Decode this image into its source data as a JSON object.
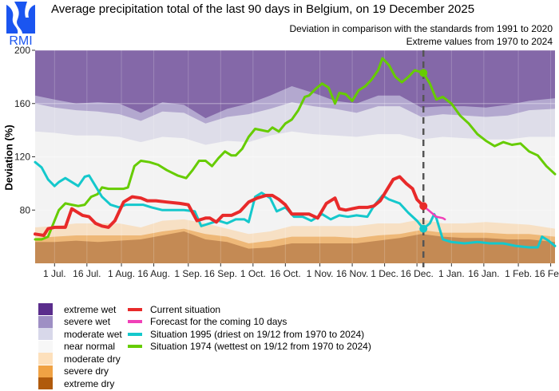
{
  "header": {
    "logo_text": "RMI",
    "title": "Average precipitation total of the last 90 days in Belgium, on 19 December 2025",
    "subtitle_1": "Deviation in comparison with the standards from 1991 to 2020",
    "subtitle_2": "Extreme values from 1970 to 2024"
  },
  "colors": {
    "extreme_wet": "#8468a8",
    "severe_wet": "#b3a8cf",
    "moderate_wet": "#dedde9",
    "near_normal": "#f3f3f3",
    "moderate_dry": "#f7e0c4",
    "severe_dry": "#eeb878",
    "extreme_dry": "#c48a54",
    "current": "#e82a2a",
    "forecast": "#f040b8",
    "y1995": "#14c8cc",
    "y1974": "#66cc00",
    "today_line": "#555555"
  },
  "legend": {
    "categories": [
      {
        "label": "extreme wet",
        "color": "#5a2d8c"
      },
      {
        "label": "severe wet",
        "color": "#9e8fc4"
      },
      {
        "label": "moderate wet",
        "color": "#d8d8ea"
      },
      {
        "label": "near normal",
        "color": "#f7f7f7"
      },
      {
        "label": "moderate dry",
        "color": "#fde0bc"
      },
      {
        "label": "severe dry",
        "color": "#f0a244"
      },
      {
        "label": "extreme dry",
        "color": "#b05a0c"
      }
    ],
    "series": [
      {
        "label": "Current situation",
        "color": "#e82a2a"
      },
      {
        "label": "Forecast for the coming 10 days",
        "color": "#f040b8"
      },
      {
        "label": "Situation 1995 (driest on 19/12 from 1970 to 2024)",
        "color": "#14c8cc"
      },
      {
        "label": "Situation 1974 (wettest on 19/12 from 1970 to 2024)",
        "color": "#66cc00"
      }
    ]
  },
  "chart_data": {
    "type": "area",
    "title": "Average precipitation total of the last 90 days in Belgium, on 19 December 2025",
    "xlabel": "",
    "ylabel": "Deviation (%)",
    "x_unit": "days since 1 Jul.",
    "xlim": [
      -9,
      232
    ],
    "ylim": [
      40,
      200
    ],
    "yticks": [
      80,
      120,
      160,
      200
    ],
    "xticks": [
      {
        "day": 0,
        "label": "1 Jul."
      },
      {
        "day": 15,
        "label": "16 Jul."
      },
      {
        "day": 31,
        "label": "1 Aug."
      },
      {
        "day": 46,
        "label": "16 Aug."
      },
      {
        "day": 62,
        "label": "1 Sep."
      },
      {
        "day": 77,
        "label": "16 Sep."
      },
      {
        "day": 92,
        "label": "1 Oct."
      },
      {
        "day": 107,
        "label": "16 Oct."
      },
      {
        "day": 123,
        "label": "1 Nov."
      },
      {
        "day": 138,
        "label": "16 Nov."
      },
      {
        "day": 153,
        "label": "1 Dec."
      },
      {
        "day": 168,
        "label": "16 Dec."
      },
      {
        "day": 184,
        "label": "1 Jan."
      },
      {
        "day": 199,
        "label": "16 Jan."
      },
      {
        "day": 215,
        "label": "1 Feb."
      },
      {
        "day": 230,
        "label": "16 Feb."
      }
    ],
    "grid": true,
    "today_day": 171,
    "bands": {
      "x": [
        -9,
        0,
        10,
        20,
        30,
        40,
        50,
        60,
        70,
        80,
        90,
        100,
        110,
        120,
        130,
        140,
        150,
        160,
        170,
        180,
        190,
        200,
        210,
        220,
        232
      ],
      "severe_wet_top": [
        166,
        163,
        160,
        161,
        160,
        153,
        161,
        159,
        149,
        156,
        160,
        166,
        173,
        168,
        162,
        160,
        166,
        166,
        157,
        158,
        158,
        157,
        159,
        162,
        164
      ],
      "moderate_wet_top": [
        160,
        157,
        155,
        154,
        152,
        147,
        154,
        153,
        145,
        150,
        152,
        156,
        161,
        158,
        156,
        153,
        158,
        158,
        150,
        152,
        151,
        150,
        151,
        155,
        156
      ],
      "near_normal_top": [
        139,
        138,
        136,
        136,
        135,
        131,
        135,
        134,
        129,
        132,
        131,
        136,
        139,
        137,
        136,
        135,
        137,
        137,
        133,
        135,
        134,
        133,
        133,
        135,
        135
      ],
      "moderate_dry_top": [
        67,
        68,
        70,
        70,
        70,
        67,
        72,
        73,
        70,
        66,
        62,
        64,
        68,
        68,
        68,
        68,
        70,
        70,
        73,
        70,
        70,
        71,
        70,
        69,
        66
      ],
      "severe_dry_top": [
        59,
        60,
        61,
        61,
        61,
        61,
        64,
        66,
        62,
        60,
        55,
        57,
        60,
        60,
        60,
        59,
        61,
        62,
        65,
        63,
        63,
        63,
        62,
        62,
        60
      ],
      "extreme_dry_top": [
        56,
        56,
        57,
        56,
        57,
        58,
        61,
        64,
        58,
        56,
        51,
        52,
        55,
        55,
        55,
        55,
        57,
        59,
        62,
        60,
        59,
        59,
        58,
        58,
        56
      ]
    },
    "series": [
      {
        "name": "Current situation",
        "x": [
          -9,
          -5,
          -3,
          0,
          3,
          5,
          8,
          10,
          13,
          16,
          19,
          22,
          25,
          28,
          32,
          36,
          40,
          43,
          47,
          52,
          58,
          62,
          66,
          70,
          72,
          75,
          78,
          82,
          86,
          90,
          94,
          98,
          101,
          104,
          107,
          110,
          114,
          118,
          122,
          126,
          130,
          132,
          135,
          138,
          141,
          145,
          148,
          151,
          154,
          157,
          160,
          163,
          166,
          168,
          171
        ],
        "values": [
          62,
          61,
          66,
          67,
          67,
          67,
          81,
          79,
          76,
          75,
          70,
          68,
          67,
          72,
          86,
          90,
          89,
          87,
          87,
          86,
          85,
          84,
          72,
          74,
          74,
          71,
          76,
          76,
          79,
          86,
          89,
          91,
          91,
          88,
          84,
          77,
          77,
          77,
          74,
          85,
          89,
          81,
          80,
          81,
          82,
          82,
          83,
          87,
          95,
          103,
          105,
          100,
          96,
          88,
          83
        ]
      },
      {
        "name": "Forecast for the coming 10 days",
        "x": [
          171,
          174,
          177,
          180,
          181
        ],
        "values": [
          83,
          79,
          75,
          74,
          73
        ]
      },
      {
        "name": "Situation 1995",
        "x": [
          -9,
          -6,
          -3,
          0,
          2,
          5,
          8,
          11,
          14,
          16,
          19,
          22,
          26,
          30,
          33,
          37,
          41,
          45,
          50,
          55,
          60,
          65,
          68,
          72,
          76,
          80,
          84,
          88,
          90,
          93,
          96,
          100,
          103,
          107,
          111,
          115,
          119,
          124,
          128,
          132,
          136,
          140,
          145,
          148,
          152,
          155,
          160,
          164,
          168,
          171,
          174,
          176,
          177,
          180,
          184,
          190,
          196,
          202,
          208,
          214,
          220,
          224,
          226,
          229,
          232
        ],
        "values": [
          116,
          112,
          103,
          98,
          101,
          104,
          101,
          98,
          105,
          106,
          98,
          90,
          84,
          82,
          84,
          84,
          84,
          82,
          80,
          80,
          80,
          79,
          68,
          70,
          72,
          70,
          73,
          73,
          71,
          90,
          93,
          89,
          79,
          82,
          75,
          75,
          72,
          77,
          73,
          76,
          75,
          76,
          75,
          83,
          91,
          88,
          85,
          78,
          72,
          66,
          70,
          77,
          74,
          58,
          56,
          55,
          56,
          55,
          55,
          53,
          52,
          52,
          60,
          57,
          53
        ]
      },
      {
        "name": "Situation 1974",
        "x": [
          -9,
          -6,
          -3,
          0,
          2,
          5,
          8,
          11,
          14,
          17,
          20,
          22,
          25,
          28,
          32,
          34,
          37,
          40,
          44,
          48,
          52,
          57,
          61,
          64,
          67,
          70,
          73,
          76,
          79,
          82,
          84,
          87,
          90,
          93,
          96,
          99,
          101,
          104,
          107,
          110,
          113,
          116,
          118,
          121,
          124,
          127,
          130,
          132,
          135,
          138,
          141,
          144,
          147,
          150,
          152,
          155,
          158,
          161,
          164,
          167,
          171,
          174,
          177,
          180,
          184,
          188,
          192,
          196,
          200,
          204,
          208,
          212,
          216,
          220,
          224,
          228,
          232
        ],
        "values": [
          58,
          58,
          60,
          72,
          80,
          85,
          84,
          83,
          84,
          90,
          92,
          97,
          96,
          96,
          96,
          97,
          113,
          117,
          116,
          114,
          110,
          106,
          104,
          110,
          117,
          117,
          113,
          119,
          124,
          121,
          121,
          126,
          135,
          141,
          140,
          139,
          142,
          139,
          145,
          148,
          155,
          165,
          166,
          171,
          175,
          172,
          160,
          168,
          167,
          162,
          170,
          173,
          178,
          185,
          194,
          189,
          180,
          176,
          180,
          185,
          183,
          175,
          163,
          165,
          160,
          151,
          145,
          137,
          132,
          128,
          131,
          129,
          130,
          124,
          121,
          113,
          107
        ]
      }
    ]
  }
}
